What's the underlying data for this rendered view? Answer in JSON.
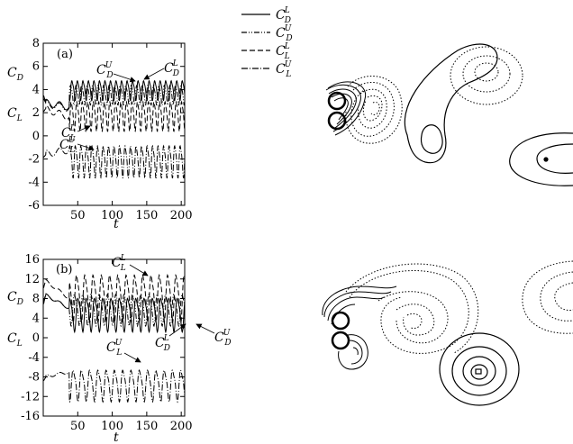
{
  "figure": {
    "legend": [
      {
        "symbol": "C",
        "sub": "D",
        "sup": "L",
        "style": "solid"
      },
      {
        "symbol": "C",
        "sub": "D",
        "sup": "U",
        "style": "dashdotdot"
      },
      {
        "symbol": "C",
        "sub": "L",
        "sup": "L",
        "style": "dashed"
      },
      {
        "symbol": "C",
        "sub": "L",
        "sup": "U",
        "style": "dashdot"
      }
    ],
    "panel_a": {
      "label": "(a)",
      "y_label_top": "C",
      "y_label_top_sub": "D",
      "y_label_bottom": "C",
      "y_label_bottom_sub": "L",
      "x_label": "t",
      "annotations": [
        {
          "symbol": "C",
          "sub": "D",
          "sup": "U"
        },
        {
          "symbol": "C",
          "sub": "D",
          "sup": "L"
        },
        {
          "symbol": "C",
          "sub": "L",
          "sup": "L"
        },
        {
          "symbol": "C",
          "sub": "L",
          "sup": "U"
        }
      ]
    },
    "panel_b": {
      "label": "(b)",
      "y_label_top": "C",
      "y_label_top_sub": "D",
      "y_label_bottom": "C",
      "y_label_bottom_sub": "L",
      "x_label": "t",
      "annotations": [
        {
          "symbol": "C",
          "sub": "L",
          "sup": "L"
        },
        {
          "symbol": "C",
          "sub": "D",
          "sup": "L"
        },
        {
          "symbol": "C",
          "sub": "D",
          "sup": "U"
        },
        {
          "symbol": "C",
          "sub": "L",
          "sup": "U"
        }
      ]
    }
  },
  "chart_data": [
    {
      "type": "line",
      "panel": "a",
      "xlim": [
        0,
        205
      ],
      "ylim": [
        -6,
        8
      ],
      "x_ticks": [
        "50",
        "100",
        "150",
        "200"
      ],
      "y_ticks": [
        "-6",
        "-4",
        "-2",
        "0",
        "2",
        "4",
        "6",
        "8"
      ],
      "series": [
        {
          "name": "C_D^L",
          "style": "solid",
          "mean": 4.0,
          "amp": 0.8,
          "period": 8.0,
          "phase": 0.0,
          "start": [
            2.9,
            2.5
          ]
        },
        {
          "name": "C_D^U",
          "style": "dashdotdot",
          "mean": 3.6,
          "amp": 0.8,
          "period": 8.0,
          "phase": 2.0,
          "start": [
            2.8,
            2.4
          ]
        },
        {
          "name": "C_L^L",
          "style": "dashed",
          "mean": 1.8,
          "amp": 1.2,
          "period": 8.0,
          "phase": 1.0,
          "start": [
            2.4,
            1.6
          ]
        },
        {
          "name": "C_L^U",
          "style": "dashdot",
          "mean": -2.1,
          "amp": 1.3,
          "period": 8.0,
          "phase": 3.0,
          "start": [
            -1.6,
            -1.2
          ]
        }
      ]
    },
    {
      "type": "line",
      "panel": "b",
      "xlim": [
        0,
        205
      ],
      "ylim": [
        -16,
        16
      ],
      "x_ticks": [
        "50",
        "100",
        "150",
        "200"
      ],
      "y_ticks": [
        "-16",
        "-12",
        "-8",
        "-4",
        "0",
        "4",
        "8",
        "12",
        "16"
      ],
      "series": [
        {
          "name": "C_D^L",
          "style": "solid",
          "mean": 5.0,
          "amp": 3.2,
          "period": 12.0,
          "phase": 0.0,
          "start": [
            9.0,
            6.0
          ]
        },
        {
          "name": "C_D^U",
          "style": "dashdotdot",
          "mean": 6.0,
          "amp": 3.0,
          "period": 12.0,
          "phase": 5.0,
          "start": [
            9.0,
            6.0
          ]
        },
        {
          "name": "C_L^L",
          "style": "dashed",
          "mean": 8.5,
          "amp": 4.5,
          "period": 12.0,
          "phase": 2.0,
          "start": [
            12.0,
            8.0
          ]
        },
        {
          "name": "C_L^U",
          "style": "dashdot",
          "mean": -9.5,
          "amp": 3.0,
          "period": 12.0,
          "phase": 7.0,
          "start": [
            -8.0,
            -7.0
          ]
        }
      ]
    }
  ]
}
